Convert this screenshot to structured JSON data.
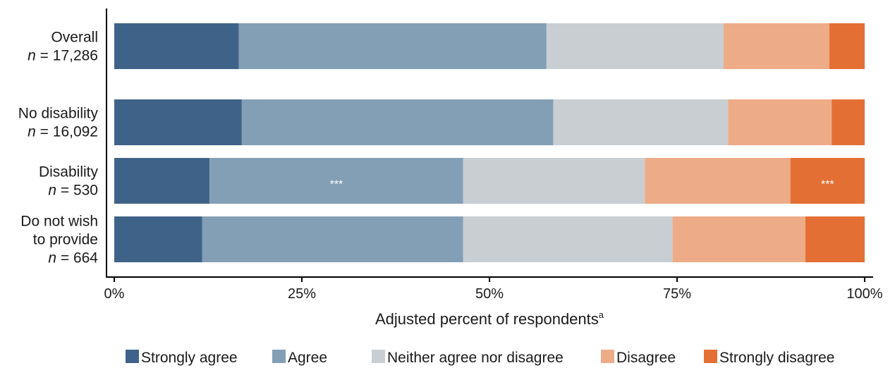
{
  "chart_data": {
    "type": "bar",
    "orientation": "horizontal",
    "stacked": true,
    "xlabel": "Adjusted percent of respondents",
    "xlabel_superscript": "a",
    "xlim": [
      0,
      100
    ],
    "xticks": [
      {
        "value": 0,
        "label": "0%"
      },
      {
        "value": 25,
        "label": "25%"
      },
      {
        "value": 50,
        "label": "50%"
      },
      {
        "value": 75,
        "label": "75%"
      },
      {
        "value": 100,
        "label": "100%"
      }
    ],
    "categories": [
      {
        "line1": "Overall",
        "n_prefix": "n",
        "n_value": " = 17,286"
      },
      {
        "line1": "No disability",
        "n_prefix": "n",
        "n_value": " = 16,092"
      },
      {
        "line1": "Disability",
        "n_prefix": "n",
        "n_value": " = 530"
      },
      {
        "line1": "Do not wish",
        "line2": "to provide",
        "n_prefix": "n",
        "n_value": " = 664"
      }
    ],
    "series": [
      {
        "name": "Strongly agree",
        "color": "#3f6388",
        "values": [
          16.6,
          17.0,
          12.7,
          11.7
        ]
      },
      {
        "name": "Agree",
        "color": "#839fb5",
        "values": [
          41.0,
          41.5,
          33.8,
          34.8
        ]
      },
      {
        "name": "Neither agree nor disagree",
        "color": "#c9ced2",
        "values": [
          23.6,
          23.3,
          24.2,
          27.9
        ]
      },
      {
        "name": "Disagree",
        "color": "#edac87",
        "values": [
          14.1,
          13.8,
          19.4,
          17.7
        ]
      },
      {
        "name": "Strongly disagree",
        "color": "#e46f34",
        "values": [
          4.7,
          4.4,
          9.9,
          7.9
        ]
      }
    ],
    "annotations": [
      {
        "category_index": 2,
        "series_index": 1,
        "text": "***"
      },
      {
        "category_index": 2,
        "series_index": 4,
        "text": "***"
      }
    ],
    "legend": {
      "placement": "bottom"
    },
    "grid": false
  }
}
